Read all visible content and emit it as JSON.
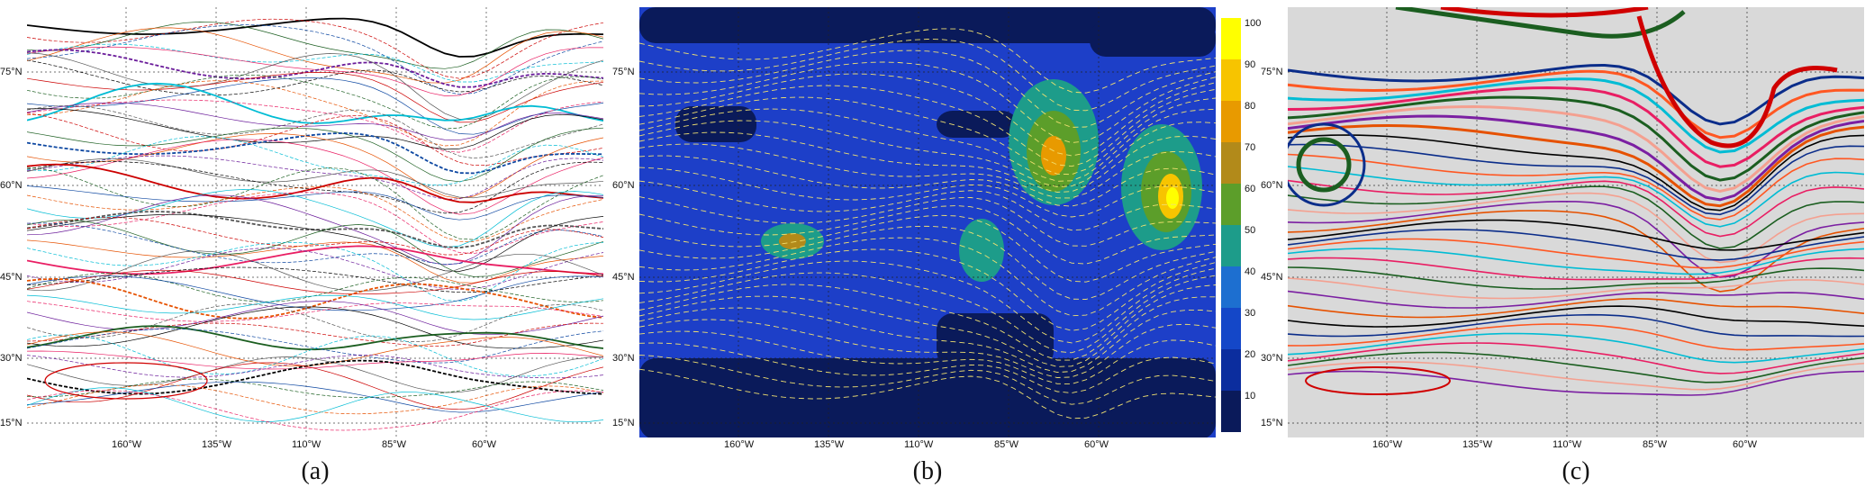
{
  "panels": [
    {
      "caption": "(a)",
      "lat_labels": [
        "75°N",
        "60°N",
        "45°N",
        "30°N",
        "15°N"
      ],
      "lon_labels": [
        "160°W",
        "135°W",
        "110°W",
        "85°W",
        "60°W"
      ]
    },
    {
      "caption": "(b)",
      "lat_labels": [
        "75°N",
        "60°N",
        "45°N",
        "30°N",
        "15°N"
      ],
      "lon_labels": [
        "160°W",
        "135°W",
        "110°W",
        "85°W",
        "60°W"
      ]
    },
    {
      "caption": "(c)",
      "lat_labels": [
        "75°N",
        "60°N",
        "45°N",
        "30°N",
        "15°N"
      ],
      "lon_labels": [
        "160°W",
        "135°W",
        "110°W",
        "85°W",
        "60°W"
      ]
    }
  ],
  "colorbar": {
    "ticks": [
      "100",
      "90",
      "80",
      "70",
      "60",
      "50",
      "40",
      "30",
      "20",
      "10"
    ],
    "colors": [
      "#ffff00",
      "#f7c400",
      "#e89a00",
      "#b28a1a",
      "#5c9e2a",
      "#1d9c8a",
      "#1d6fd0",
      "#1447c8",
      "#0b2d9e",
      "#0a1a5a"
    ]
  },
  "map_colors": {
    "ocean_blue": "#1438c8",
    "deep_blue": "#0a1a5a",
    "contour_yellow": "#f0e070",
    "grey_bg": "#d9d9d9"
  }
}
